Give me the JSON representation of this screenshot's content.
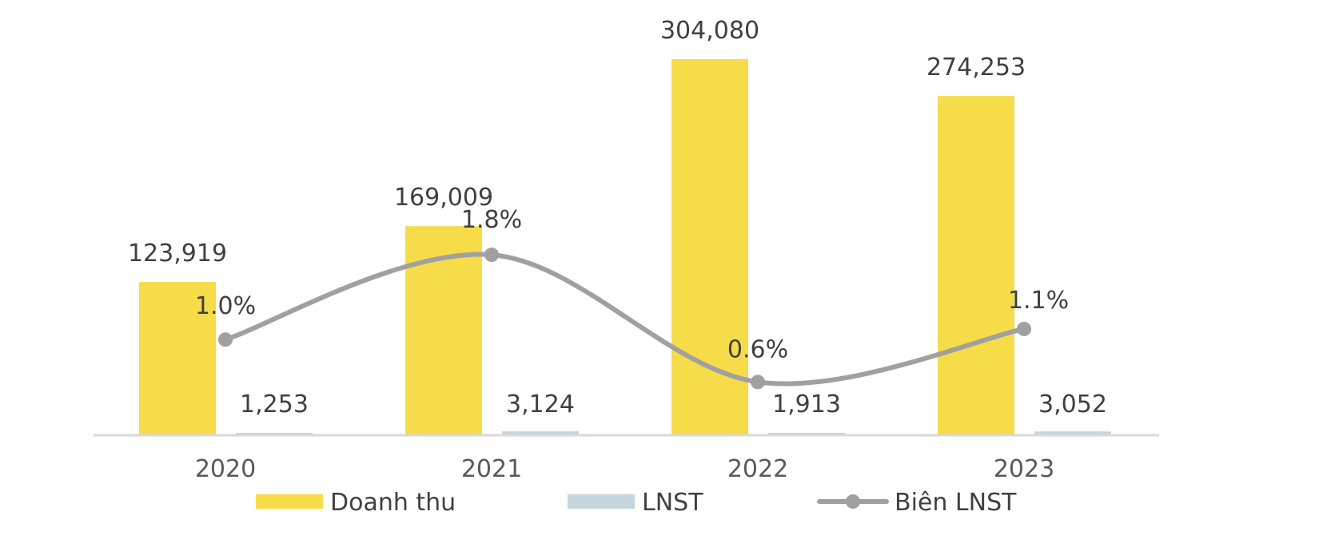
{
  "chart_data": {
    "type": "bar",
    "categories": [
      "2020",
      "2021",
      "2022",
      "2023"
    ],
    "series": [
      {
        "name": "Doanh thu",
        "kind": "bar",
        "axis": "left",
        "color": "#F7DC4A",
        "values": [
          123919,
          169009,
          304080,
          274253
        ],
        "labels": [
          "123,919",
          "169,009",
          "304,080",
          "274,253"
        ]
      },
      {
        "name": "LNST",
        "kind": "bar",
        "axis": "left",
        "color": "#C5D5DD",
        "values": [
          1253,
          3124,
          1913,
          3052
        ],
        "labels": [
          "1,253",
          "3,124",
          "1,913",
          "3,052"
        ]
      },
      {
        "name": "Biên LNST",
        "kind": "line",
        "axis": "right",
        "color": "#A0A0A0",
        "values": [
          1.0,
          1.8,
          0.6,
          1.1
        ],
        "labels": [
          "1.0%",
          "1.8%",
          "0.6%",
          "1.1%"
        ]
      }
    ],
    "ylim": [
      0,
      304080
    ],
    "y2lim": [
      0,
      3.4
    ],
    "grid": false,
    "legend_position": "bottom",
    "axis_color": "#D9D9D9"
  }
}
